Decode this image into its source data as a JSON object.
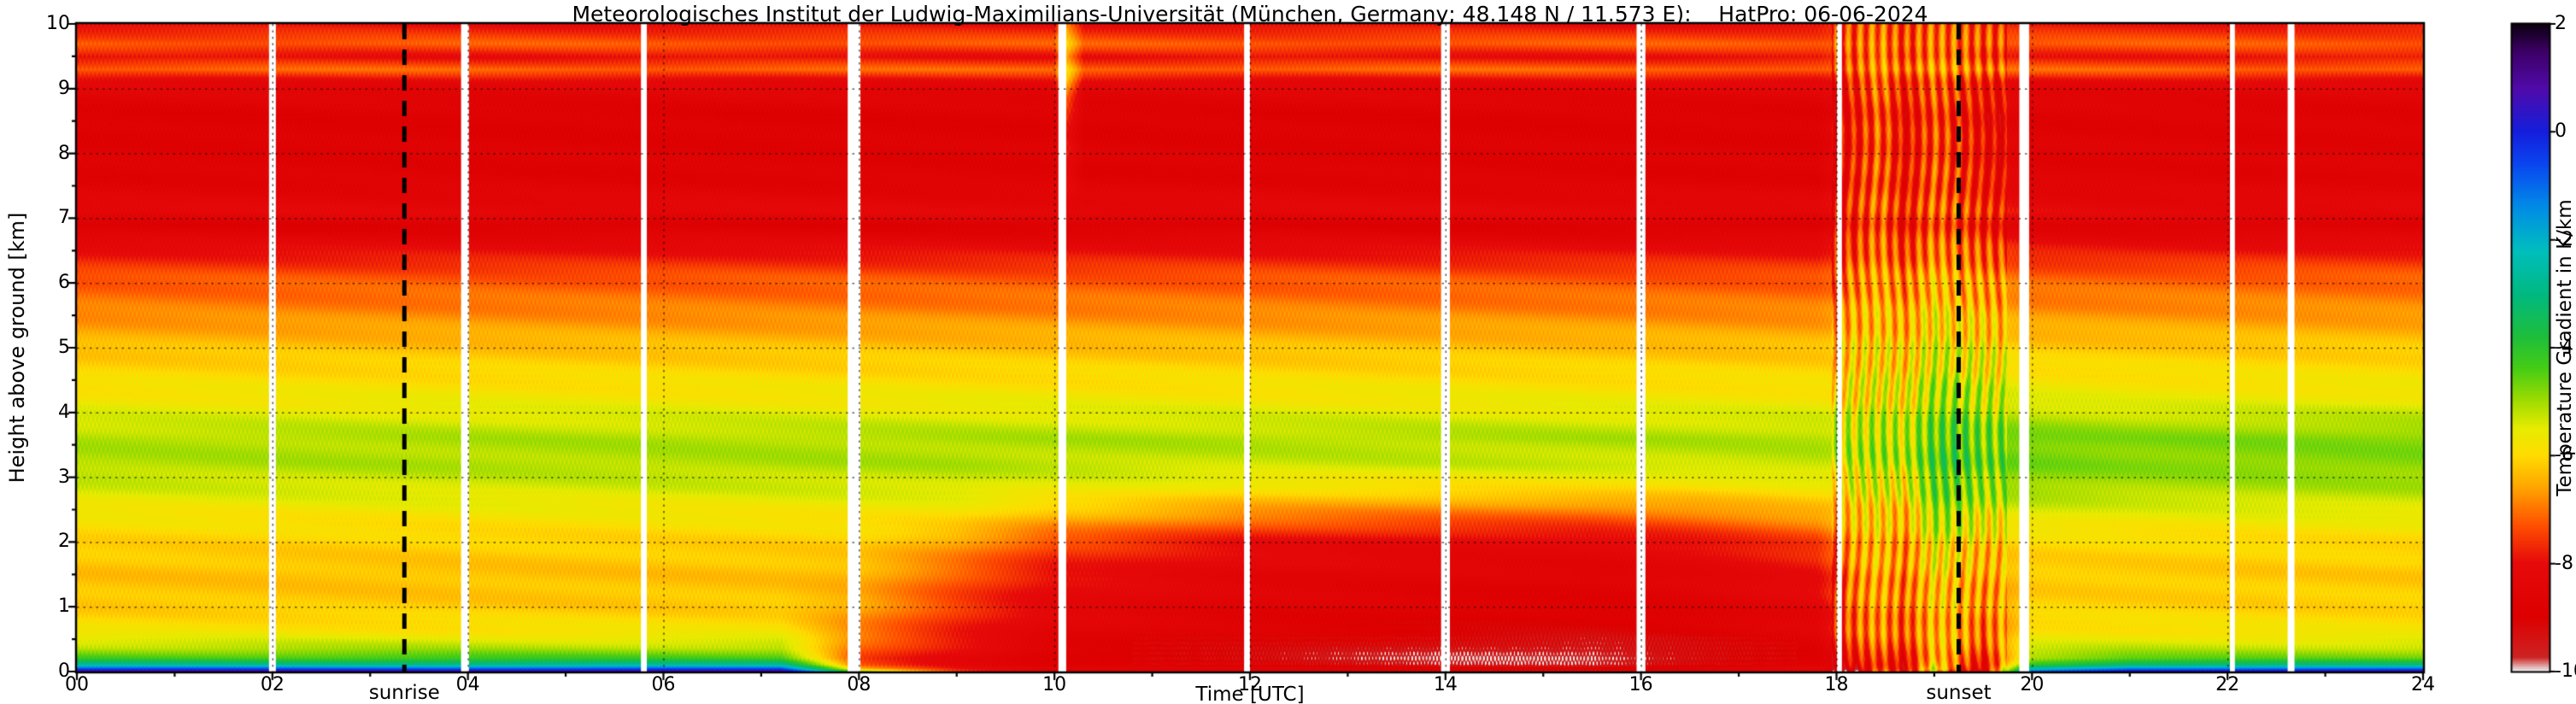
{
  "chart_data": {
    "type": "heatmap",
    "title": "Meteorologisches Institut der Ludwig-Maximilians-Universität (München, Germany; 48.148 N / 11.573 E):    HatPro: 06-06-2024",
    "xlabel": "Time [UTC]",
    "ylabel": "Height above ground [km]",
    "x_range": [
      0,
      24
    ],
    "y_range": [
      0,
      10
    ],
    "x_ticks": [
      "00",
      "02",
      "04",
      "06",
      "08",
      "10",
      "12",
      "14",
      "16",
      "18",
      "20",
      "22",
      "24"
    ],
    "y_ticks": [
      "0",
      "1",
      "2",
      "3",
      "4",
      "5",
      "6",
      "7",
      "8",
      "9",
      "10"
    ],
    "grid_lines": {
      "horizontal_km": [
        1,
        2,
        3,
        4,
        5,
        6,
        7,
        8,
        9
      ],
      "vertical_hours": [
        2,
        4,
        6,
        8,
        10,
        12,
        14,
        16,
        18,
        20,
        22
      ],
      "style": "dotted"
    },
    "colorbar": {
      "label": "Temperature Gradient in K/km",
      "min": -10,
      "max": 2,
      "ticks": [
        "2",
        "0",
        "-2",
        "-4",
        "-6",
        "-8",
        "-10"
      ],
      "tick_values": [
        2,
        0,
        -2,
        -4,
        -6,
        -8,
        -10
      ]
    },
    "colormap": [
      [
        -10.0,
        "#ebebeb"
      ],
      [
        -9.75,
        "#cd2323"
      ],
      [
        -9.0,
        "#dd0000"
      ],
      [
        -8.0,
        "#e60a0a"
      ],
      [
        -7.3,
        "#ff5000"
      ],
      [
        -6.6,
        "#ffa500"
      ],
      [
        -6.0,
        "#ffdc00"
      ],
      [
        -5.5,
        "#e6ec00"
      ],
      [
        -5.0,
        "#a0dc00"
      ],
      [
        -4.4,
        "#46cd14"
      ],
      [
        -3.8,
        "#1ebe3c"
      ],
      [
        -3.0,
        "#00b982"
      ],
      [
        -2.2,
        "#00bebe"
      ],
      [
        -1.4,
        "#008ce6"
      ],
      [
        -0.6,
        "#0a46f0"
      ],
      [
        0.0,
        "#141edc"
      ],
      [
        0.8,
        "#500aaa"
      ],
      [
        1.5,
        "#3c0064"
      ],
      [
        2.0,
        "#0a000f"
      ]
    ],
    "annotations": {
      "sunrise": {
        "label": "sunrise",
        "time": 3.35,
        "line_style": "dashed-black"
      },
      "sunset": {
        "label": "sunset",
        "time": 19.25,
        "line_style": "dashed-black"
      }
    },
    "data_gaps": [
      [
        2.0,
        0.07
      ],
      [
        3.97,
        0.08
      ],
      [
        5.8,
        0.06
      ],
      [
        7.95,
        0.13
      ],
      [
        10.08,
        0.08
      ],
      [
        11.97,
        0.06
      ],
      [
        14.0,
        0.09
      ],
      [
        16.0,
        0.09
      ],
      [
        18.03,
        0.05
      ],
      [
        19.92,
        0.1
      ],
      [
        22.05,
        0.05
      ],
      [
        22.65,
        0.07
      ]
    ],
    "grid": {
      "heights": [
        0,
        0.04,
        0.1,
        0.2,
        0.35,
        0.6,
        1.0,
        1.5,
        2.0,
        2.4,
        2.8,
        3.2,
        3.6,
        4.2,
        5.0,
        5.6,
        6.1,
        6.6,
        6.9,
        7.1,
        7.6,
        8.6,
        9.1,
        9.3,
        9.5,
        9.7,
        10
      ],
      "columns": [
        {
          "t": 0,
          "v": [
            0.8,
            -0.8,
            -2.8,
            -4.3,
            -5.1,
            -5.8,
            -6.2,
            -6.3,
            -6.1,
            -5.8,
            -5.4,
            -5.1,
            -5.1,
            -5.7,
            -6.3,
            -6.9,
            -7.3,
            -8.2,
            -8.9,
            -8.2,
            -8.7,
            -8.8,
            -8.3,
            -7.1,
            -8.0,
            -7.2,
            -8.0
          ]
        },
        {
          "t": 7.2,
          "v": [
            0.8,
            -0.8,
            -2.8,
            -4.3,
            -5.1,
            -5.8,
            -6.2,
            -6.3,
            -6.1,
            -5.8,
            -5.4,
            -5.1,
            -5.1,
            -5.7,
            -6.3,
            -6.9,
            -7.3,
            -8.2,
            -8.9,
            -8.2,
            -8.7,
            -8.8,
            -8.3,
            -7.1,
            -8.0,
            -7.2,
            -8.0
          ]
        },
        {
          "t": 8,
          "v": [
            -5.0,
            -6.5,
            -7.2,
            -7.4,
            -7.2,
            -6.9,
            -6.6,
            -6.4,
            -6.1,
            -5.8,
            -5.4,
            -5.1,
            -5.1,
            -5.7,
            -6.3,
            -6.9,
            -7.3,
            -8.2,
            -8.9,
            -8.2,
            -8.7,
            -8.8,
            -8.3,
            -7.1,
            -8.0,
            -7.2,
            -8.0
          ]
        },
        {
          "t": 9,
          "v": [
            -7.5,
            -7.8,
            -8.2,
            -8.3,
            -8.0,
            -7.8,
            -7.5,
            -7.2,
            -6.6,
            -5.9,
            -5.4,
            -5.1,
            -5.1,
            -5.7,
            -6.3,
            -6.9,
            -7.3,
            -8.2,
            -8.9,
            -8.2,
            -8.7,
            -8.8,
            -8.3,
            -7.1,
            -8.0,
            -7.2,
            -8.0
          ]
        },
        {
          "t": 10,
          "v": [
            -8.8,
            -8.4,
            -8.8,
            -9.0,
            -8.8,
            -8.5,
            -8.3,
            -8.0,
            -7.4,
            -6.4,
            -5.6,
            -5.2,
            -5.1,
            -5.7,
            -6.3,
            -6.9,
            -7.3,
            -8.2,
            -8.9,
            -8.2,
            -8.7,
            -8.8,
            -8.3,
            -7.1,
            -8.0,
            -7.2,
            -8.0
          ]
        },
        {
          "t": 10.1,
          "v": [
            -8.8,
            -8.4,
            -8.8,
            -9.0,
            -8.8,
            -8.5,
            -8.3,
            -8.0,
            -7.4,
            -6.4,
            -5.6,
            -5.2,
            -5.1,
            -5.7,
            -6.3,
            -6.9,
            -7.3,
            -8.2,
            -8.9,
            -8.2,
            -8.0,
            -7.6,
            -6.2,
            -5.6,
            -6.3,
            -5.9,
            -6.5
          ]
        },
        {
          "t": 10.3,
          "v": [
            -8.8,
            -8.4,
            -8.8,
            -9.0,
            -8.8,
            -8.5,
            -8.3,
            -8.0,
            -7.4,
            -6.4,
            -5.6,
            -5.2,
            -5.1,
            -5.7,
            -6.3,
            -6.9,
            -7.3,
            -8.2,
            -8.9,
            -8.2,
            -8.7,
            -8.8,
            -8.3,
            -7.1,
            -8.0,
            -7.2,
            -8.0
          ]
        },
        {
          "t": 12,
          "v": [
            -9.0,
            -8.6,
            -9.1,
            -9.2,
            -9.0,
            -8.8,
            -8.6,
            -8.4,
            -8.0,
            -6.9,
            -5.9,
            -5.3,
            -5.1,
            -5.7,
            -6.3,
            -6.9,
            -7.3,
            -8.2,
            -8.9,
            -8.2,
            -8.7,
            -8.8,
            -8.3,
            -7.1,
            -8.0,
            -7.2,
            -8.0
          ]
        },
        {
          "t": 14,
          "v": [
            -9.2,
            -8.8,
            -9.5,
            -9.8,
            -9.5,
            -9.0,
            -8.8,
            -8.5,
            -8.2,
            -7.1,
            -6.0,
            -5.3,
            -5.1,
            -5.7,
            -6.3,
            -6.9,
            -7.3,
            -8.2,
            -8.9,
            -8.2,
            -8.7,
            -8.8,
            -8.3,
            -7.1,
            -8.0,
            -7.2,
            -8.0
          ]
        },
        {
          "t": 15.5,
          "v": [
            -9.2,
            -8.8,
            -9.6,
            -9.9,
            -9.6,
            -9.1,
            -8.8,
            -8.6,
            -8.2,
            -7.2,
            -6.0,
            -5.3,
            -5.1,
            -5.7,
            -6.3,
            -6.9,
            -7.3,
            -8.2,
            -8.9,
            -8.2,
            -8.7,
            -8.8,
            -8.3,
            -7.1,
            -8.0,
            -7.2,
            -8.0
          ]
        },
        {
          "t": 16.5,
          "v": [
            -9.0,
            -8.6,
            -9.2,
            -9.4,
            -9.2,
            -8.9,
            -8.7,
            -8.4,
            -8.0,
            -7.0,
            -6.0,
            -5.3,
            -5.1,
            -5.7,
            -6.3,
            -6.9,
            -7.3,
            -8.2,
            -8.9,
            -8.2,
            -8.7,
            -8.8,
            -8.3,
            -7.1,
            -8.0,
            -7.2,
            -8.0
          ]
        },
        {
          "t": 17.8,
          "v": [
            -8.8,
            -8.4,
            -8.8,
            -8.9,
            -8.7,
            -8.5,
            -8.3,
            -8.0,
            -7.5,
            -6.6,
            -5.8,
            -5.2,
            -5.1,
            -5.7,
            -6.3,
            -6.9,
            -7.3,
            -8.2,
            -8.9,
            -8.2,
            -8.7,
            -8.8,
            -8.3,
            -7.1,
            -8.0,
            -7.2,
            -8.0
          ]
        },
        {
          "t": 18.2,
          "v": [
            -9.5,
            -9.0,
            -8.5,
            -8.0,
            -7.6,
            -7.2,
            -7.0,
            -6.8,
            -6.5,
            -6.2,
            -5.8,
            -5.3,
            -5.2,
            -5.8,
            -6.2,
            -6.6,
            -7.0,
            -7.6,
            -8.0,
            -7.6,
            -7.8,
            -8.0,
            -7.8,
            -7.0,
            -7.6,
            -7.0,
            -7.5
          ]
        },
        {
          "t": 18.45,
          "v": [
            -7.0,
            -7.5,
            -7.8,
            -7.4,
            -7.0,
            -6.8,
            -6.6,
            -6.4,
            -6.2,
            -6.0,
            -5.6,
            -5.1,
            -5.0,
            -5.6,
            -6.0,
            -6.3,
            -6.6,
            -7.0,
            -7.3,
            -7.0,
            -7.2,
            -7.3,
            -7.0,
            -6.6,
            -7.0,
            -6.7,
            -7.2
          ]
        },
        {
          "t": 18.7,
          "v": [
            -8.5,
            -8.8,
            -8.6,
            -8.2,
            -7.8,
            -7.4,
            -7.2,
            -7.0,
            -6.8,
            -6.4,
            -5.9,
            -5.3,
            -5.2,
            -5.8,
            -6.3,
            -6.7,
            -7.1,
            -7.8,
            -8.3,
            -7.9,
            -8.2,
            -8.3,
            -8.0,
            -7.1,
            -7.8,
            -7.2,
            -7.8
          ]
        },
        {
          "t": 19.0,
          "v": [
            -6.0,
            -5.5,
            -6.0,
            -6.3,
            -6.4,
            -6.4,
            -6.3,
            -6.0,
            -5.6,
            -5.0,
            -4.6,
            -4.3,
            -4.4,
            -5.0,
            -5.6,
            -6.0,
            -6.4,
            -7.0,
            -7.4,
            -7.1,
            -7.3,
            -7.5,
            -7.2,
            -6.6,
            -7.1,
            -6.8,
            -7.3
          ]
        },
        {
          "t": 19.25,
          "v": [
            -8.0,
            -7.5,
            -7.0,
            -6.8,
            -6.6,
            -6.5,
            -6.4,
            -6.2,
            -5.7,
            -5.0,
            -4.5,
            -4.2,
            -4.3,
            -5.0,
            -5.7,
            -6.2,
            -6.6,
            -7.2,
            -7.7,
            -7.3,
            -7.6,
            -7.8,
            -7.5,
            -6.8,
            -7.3,
            -7.0,
            -7.5
          ]
        },
        {
          "t": 19.5,
          "v": [
            -9.0,
            -8.6,
            -8.4,
            -8.0,
            -7.6,
            -7.2,
            -6.9,
            -6.6,
            -6.2,
            -5.6,
            -5.0,
            -4.6,
            -4.6,
            -5.3,
            -5.9,
            -6.4,
            -6.8,
            -7.5,
            -8.1,
            -7.7,
            -8.1,
            -8.3,
            -8.0,
            -7.0,
            -7.7,
            -7.1,
            -7.7
          ]
        },
        {
          "t": 20,
          "v": [
            -1.0,
            -2.5,
            -4.0,
            -5.0,
            -5.4,
            -5.8,
            -6.1,
            -6.2,
            -6.0,
            -5.5,
            -5.0,
            -4.7,
            -4.7,
            -5.5,
            -6.2,
            -6.8,
            -7.2,
            -8.0,
            -8.7,
            -8.1,
            -8.6,
            -8.7,
            -8.3,
            -7.1,
            -7.9,
            -7.2,
            -7.9
          ]
        },
        {
          "t": 21,
          "v": [
            0.5,
            -1.2,
            -3.2,
            -4.6,
            -5.2,
            -5.8,
            -6.1,
            -6.2,
            -6.0,
            -5.6,
            -5.1,
            -4.8,
            -4.8,
            -5.6,
            -6.2,
            -6.8,
            -7.2,
            -8.1,
            -8.8,
            -8.2,
            -8.6,
            -8.7,
            -8.3,
            -7.1,
            -7.9,
            -7.2,
            -7.9
          ]
        },
        {
          "t": 24,
          "v": [
            0.5,
            -1.2,
            -3.2,
            -4.6,
            -5.2,
            -5.8,
            -6.1,
            -6.2,
            -6.0,
            -5.6,
            -5.1,
            -4.8,
            -4.8,
            -5.6,
            -6.2,
            -6.8,
            -7.2,
            -8.1,
            -8.8,
            -8.2,
            -8.6,
            -8.7,
            -8.3,
            -7.1,
            -7.9,
            -7.2,
            -7.9
          ]
        }
      ]
    }
  }
}
